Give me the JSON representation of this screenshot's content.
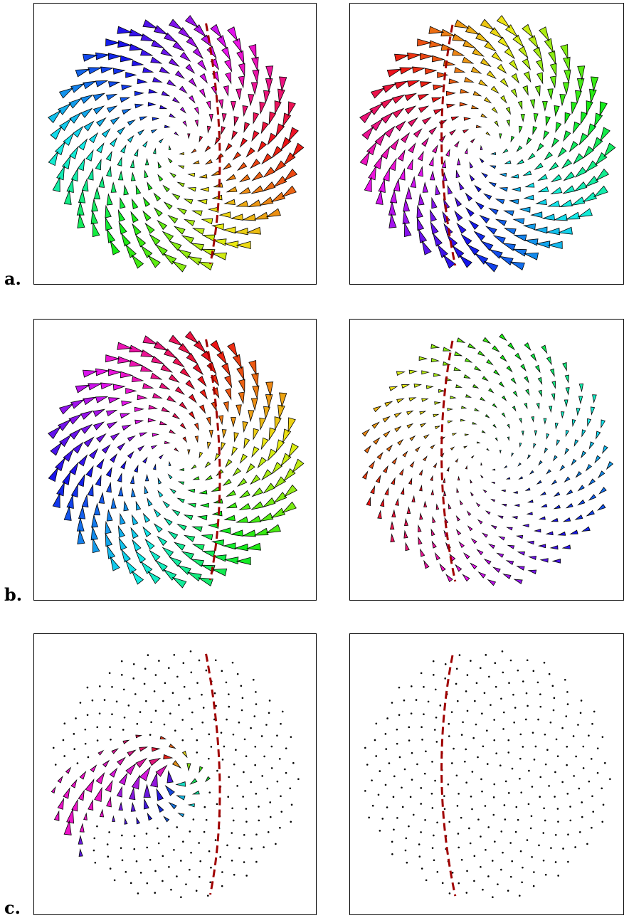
{
  "figure": {
    "row_labels": [
      "a.",
      "b.",
      "c."
    ],
    "panels": [
      {
        "row": 0,
        "col": 0,
        "mode": "tri",
        "hue_offset": 0,
        "scale": 1.0,
        "curve": "right"
      },
      {
        "row": 0,
        "col": 1,
        "mode": "tri",
        "hue_offset": 140,
        "scale": 1.0,
        "curve": "left"
      },
      {
        "row": 1,
        "col": 0,
        "mode": "tri",
        "hue_offset": 70,
        "scale": 1.0,
        "curve": "right"
      },
      {
        "row": 1,
        "col": 1,
        "mode": "tri",
        "hue_offset": 200,
        "scale": 0.55,
        "curve": "left"
      },
      {
        "row": 2,
        "col": 0,
        "mode": "sparse",
        "hue_offset": 120,
        "scale": 1.0,
        "curve": "right"
      },
      {
        "row": 2,
        "col": 1,
        "mode": "dots",
        "hue_offset": 0,
        "scale": 0.0,
        "curve": "left"
      }
    ],
    "colors": {
      "dashed_curve": "#a00000",
      "outline": "#000000",
      "dot": "#000000"
    }
  }
}
